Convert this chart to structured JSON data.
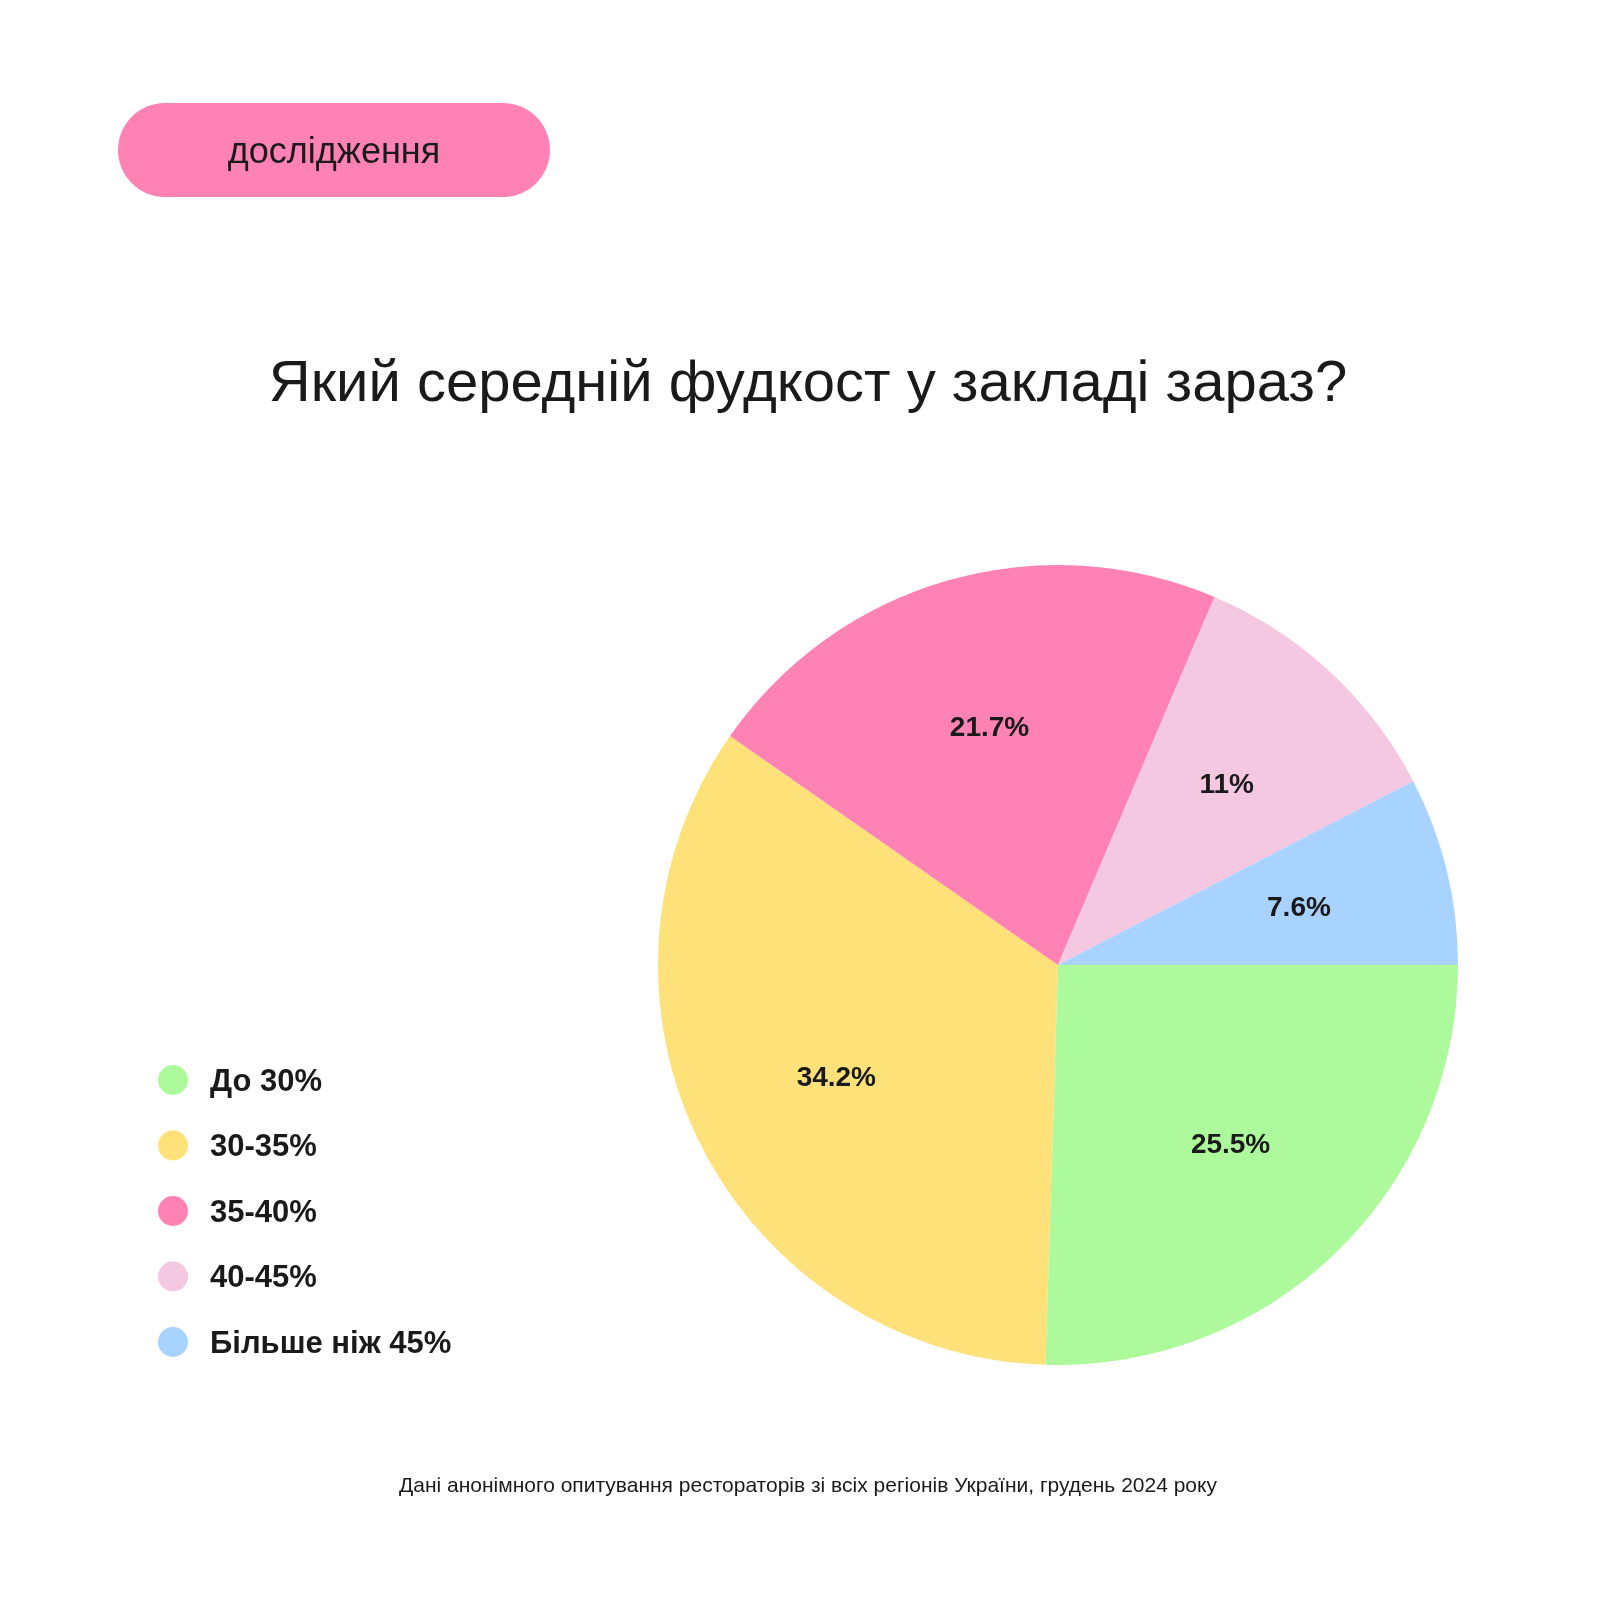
{
  "chart_data": {
    "type": "pie",
    "title": "Який середній фудкост у закладі зараз?",
    "categories": [
      "До 30%",
      "30-35%",
      "35-40%",
      "40-45%",
      "Більше ніж 45%"
    ],
    "values": [
      25.5,
      34.2,
      21.7,
      11,
      7.6
    ],
    "colors": [
      "#adfa9c",
      "#ffe17a",
      "#ff82b4",
      "#f5c8e1",
      "#a8d2ff"
    ],
    "value_labels": [
      "25.5%",
      "34.2%",
      "21.7%",
      "11%",
      "7.6%"
    ],
    "legend": "left",
    "annotations": [
      "дослідження",
      "Дані анонімного опитування рестораторів зі всіх регіонів України, грудень 2024 року"
    ]
  }
}
